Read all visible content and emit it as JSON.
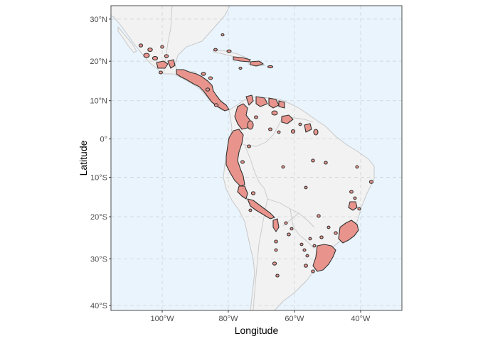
{
  "map": {
    "x_title": "Longitude",
    "y_title": "Latitude",
    "y_ticks": [
      {
        "value": 30,
        "label": "30°N"
      },
      {
        "value": 20,
        "label": "20°N"
      },
      {
        "value": 10,
        "label": "10°N"
      },
      {
        "value": 0,
        "label": "0°"
      },
      {
        "value": -10,
        "label": "10°S"
      },
      {
        "value": -20,
        "label": "20°S"
      },
      {
        "value": -30,
        "label": "30°S"
      },
      {
        "value": -40,
        "label": "40°S"
      }
    ],
    "x_ticks": [
      {
        "value": -100,
        "label": "100°W"
      },
      {
        "value": -80,
        "label": "80°W"
      },
      {
        "value": -60,
        "label": "60°W"
      },
      {
        "value": -40,
        "label": "40°W"
      }
    ],
    "lon_range": [
      -115.5,
      -27.5
    ],
    "lat_range": [
      -41,
      33
    ],
    "projection": "mercator",
    "grid": true,
    "colors": {
      "ocean": "#eaf4fd",
      "land": "#f2f2f2",
      "borders": "#c8c8c8",
      "range_fill": "#e8948c",
      "range_outline": "#333333",
      "gridline": "#d2d6da",
      "frame": "#4d4d4d"
    }
  }
}
